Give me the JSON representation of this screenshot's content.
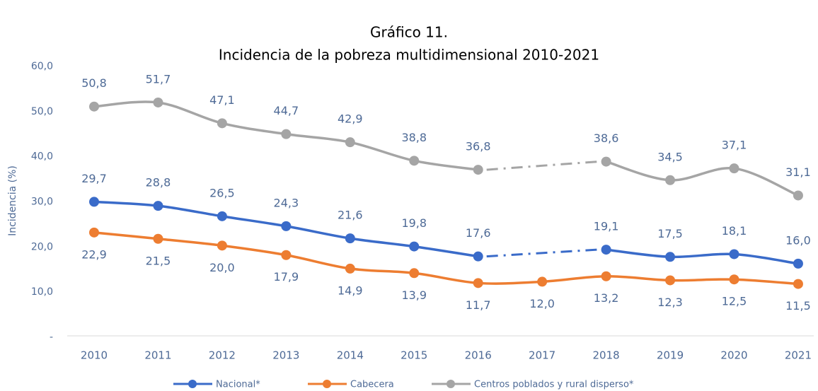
{
  "chart_data": {
    "type": "line",
    "title": "Gráfico 11.",
    "subtitle": "Incidencia de la pobreza multidimensional 2010-2021",
    "y_label": "Incidencia (%)",
    "categories": [
      "2010",
      "2011",
      "2012",
      "2013",
      "2014",
      "2015",
      "2016",
      "2017",
      "2018",
      "2019",
      "2020",
      "2021"
    ],
    "ylim": [
      0,
      60
    ],
    "yticks": [
      {
        "value": 0,
        "label": "-"
      },
      {
        "value": 10,
        "label": "10,0"
      },
      {
        "value": 20,
        "label": "20,0"
      },
      {
        "value": 30,
        "label": "30,0"
      },
      {
        "value": 40,
        "label": "40,0"
      },
      {
        "value": 50,
        "label": "50,0"
      },
      {
        "value": 60,
        "label": "60,0"
      }
    ],
    "legend": "bottom",
    "series": [
      {
        "name": "Nacional*",
        "color": "#3a6bc9",
        "label_position": "above",
        "values": [
          29.7,
          28.8,
          26.5,
          24.3,
          21.6,
          19.8,
          17.6,
          null,
          19.1,
          17.5,
          18.1,
          16.0
        ],
        "value_labels": [
          "29,7",
          "28,8",
          "26,5",
          "24,3",
          "21,6",
          "19,8",
          "17,6",
          null,
          "19,1",
          "17,5",
          "18,1",
          "16,0"
        ]
      },
      {
        "name": "Cabecera",
        "color": "#ed7d31",
        "label_position": "below",
        "values": [
          22.9,
          21.5,
          20.0,
          17.9,
          14.9,
          13.9,
          11.7,
          12.0,
          13.2,
          12.3,
          12.5,
          11.5
        ],
        "value_labels": [
          "22,9",
          "21,5",
          "20,0",
          "17,9",
          "14,9",
          "13,9",
          "11,7",
          "12,0",
          "13,2",
          "12,3",
          "12,5",
          "11,5"
        ]
      },
      {
        "name": "Centros poblados y rural disperso*",
        "color": "#a5a5a5",
        "label_position": "above",
        "values": [
          50.8,
          51.7,
          47.1,
          44.7,
          42.9,
          38.8,
          36.8,
          null,
          38.6,
          34.5,
          37.1,
          31.1
        ],
        "value_labels": [
          "50,8",
          "51,7",
          "47,1",
          "44,7",
          "42,9",
          "38,8",
          "36,8",
          null,
          "38,6",
          "34,5",
          "37,1",
          "31,1"
        ]
      }
    ]
  }
}
